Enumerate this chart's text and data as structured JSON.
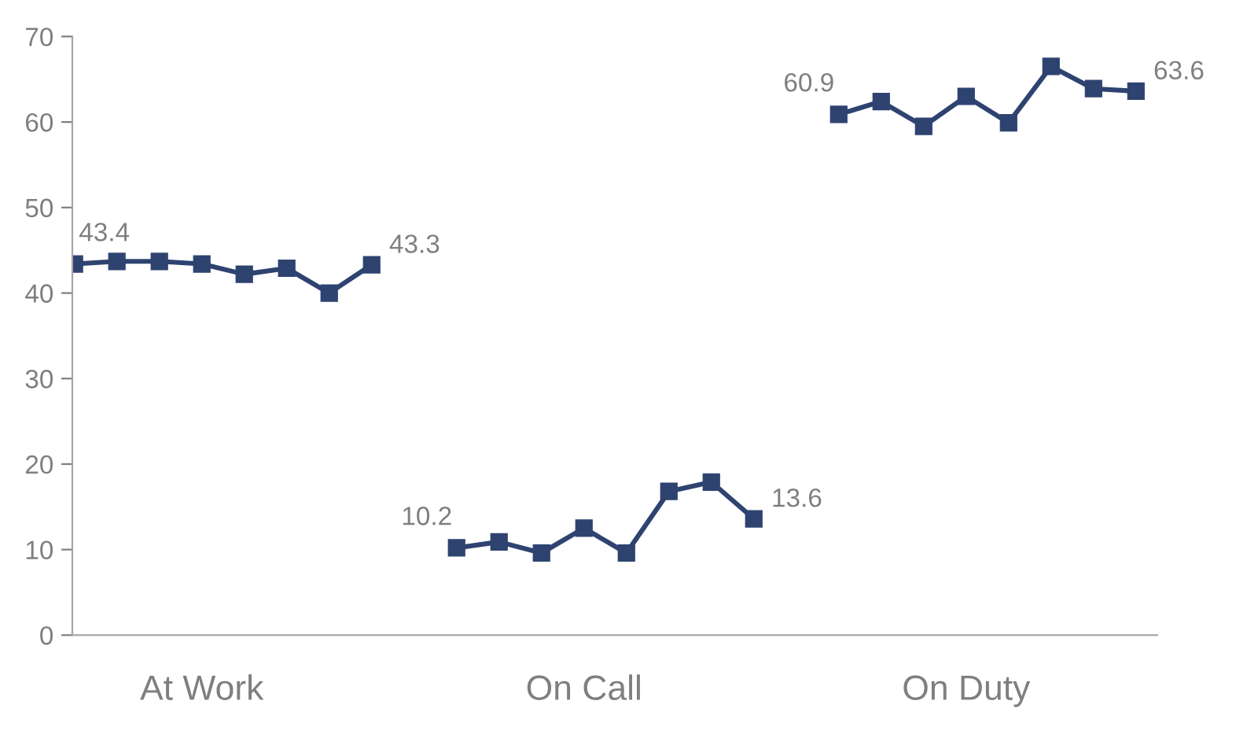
{
  "chart_data": {
    "type": "line",
    "categories": [
      null,
      null,
      null,
      "At Work",
      null,
      null,
      null,
      null,
      null,
      null,
      null,
      null,
      "On Call",
      null,
      null,
      null,
      null,
      null,
      null,
      null,
      null,
      "On Duty",
      null,
      null,
      null,
      null
    ],
    "series": [
      {
        "color": "#2e4370",
        "values": [
          43.4,
          43.7,
          43.7,
          43.4,
          42.2,
          42.9,
          40.0,
          43.3,
          null,
          10.2,
          10.9,
          9.6,
          12.5,
          9.6,
          16.8,
          17.9,
          13.6,
          null,
          60.9,
          62.4,
          59.5,
          63.0,
          59.9,
          66.5,
          63.9,
          63.6
        ],
        "value_labels": [
          "43.4",
          null,
          null,
          null,
          null,
          null,
          null,
          "43.3",
          null,
          "10.2",
          null,
          null,
          null,
          null,
          null,
          null,
          "13.6",
          null,
          "60.9",
          null,
          null,
          null,
          null,
          null,
          null,
          "63.6"
        ]
      }
    ],
    "ylim": [
      0,
      70
    ],
    "yticks": [
      0,
      10,
      20,
      30,
      40,
      50,
      60,
      70
    ],
    "marker": "square",
    "line_style": "solid",
    "grid": false,
    "legend": false
  }
}
